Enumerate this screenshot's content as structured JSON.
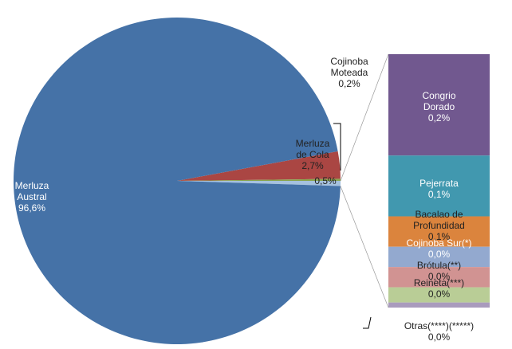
{
  "chart_data": {
    "type": "pie",
    "categories": [
      "Merluza\nde Cola",
      "Cojinoba\nMoteada",
      null,
      "Merluza\nAustral"
    ],
    "values": [
      2.7,
      0.2,
      0.5,
      96.6
    ],
    "value_labels": [
      "2,7%",
      "0,2%",
      "0,5%",
      "96,6%"
    ],
    "colors": [
      "#aa4643",
      "#89a54e",
      "#a5c1de",
      "#4572a7"
    ],
    "breakdown": {
      "type": "bar",
      "categories": [
        "Congrio\nDorado",
        "Pejerrata",
        "Bacalao de Profundidad",
        "Cojinoba Sur(*)",
        "Brótula(**)",
        "Reineta(***)",
        "Otras(****)(*****)"
      ],
      "values": [
        0.2,
        0.12,
        0.06,
        0.04,
        0.04,
        0.03,
        0.01
      ],
      "value_labels": [
        "0,2%",
        "0,1%",
        "0,1%",
        "0,0%",
        "0,0%",
        "0,0%",
        "0,0%"
      ],
      "colors": [
        "#71588f",
        "#4198af",
        "#db843d",
        "#93a9cf",
        "#d19392",
        "#b9cd96",
        "#a99bbd"
      ]
    }
  }
}
